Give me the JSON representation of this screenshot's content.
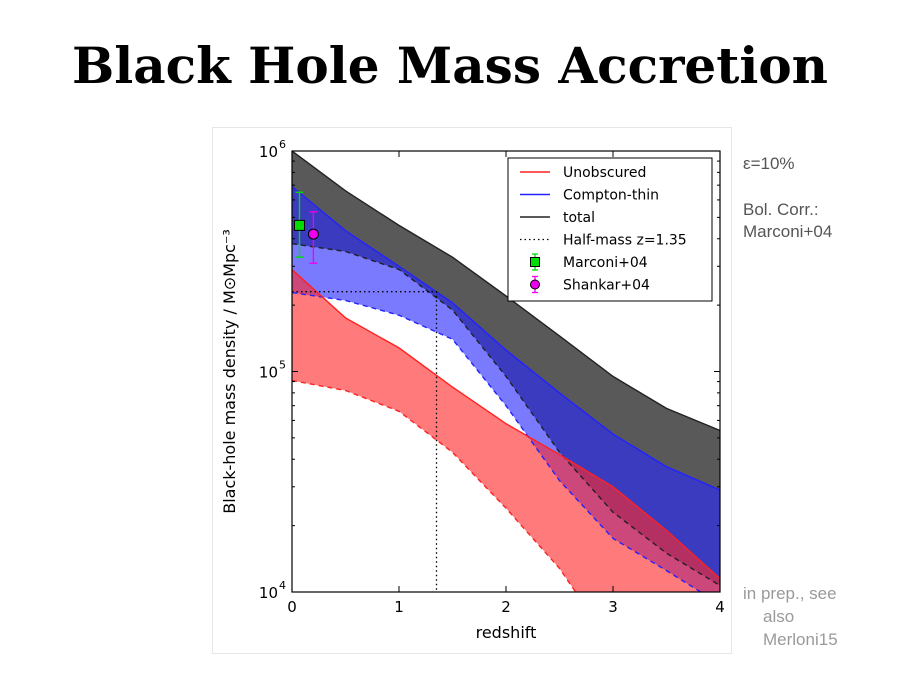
{
  "slide": {
    "title": "Black Hole Mass Accretion",
    "side_notes": [
      "ε=10%",
      "Bol. Corr.:",
      "Marconi+04"
    ],
    "reference_lines": [
      "in prep., see",
      "also",
      "Merloni15"
    ]
  },
  "chart_data": {
    "type": "area",
    "xlabel": "redshift",
    "ylabel": "Black-hole mass density / M⊙Mpc⁻³",
    "xlim": [
      0,
      4
    ],
    "ylim": [
      10000,
      1000000
    ],
    "yscale": "log",
    "xticks": [
      0,
      1,
      2,
      3,
      4
    ],
    "yticks": [
      {
        "value": 10000,
        "base": "10",
        "exp": "4"
      },
      {
        "value": 100000,
        "base": "10",
        "exp": "5"
      },
      {
        "value": 1000000,
        "base": "10",
        "exp": "6"
      }
    ],
    "grid": false,
    "legend_position": "top-right",
    "colors": {
      "unobscured": "#ff2222",
      "compton_thin": "#2222ff",
      "total": "#222222",
      "marconi": "#00dd00",
      "shankar": "#ee00ee"
    },
    "series": [
      {
        "name": "Unobscured",
        "kind": "band",
        "upper": [
          [
            0,
            290000
          ],
          [
            0.5,
            175000
          ],
          [
            1,
            128000
          ],
          [
            1.5,
            85000
          ],
          [
            2,
            58000
          ],
          [
            2.5,
            42000
          ],
          [
            3,
            30000
          ],
          [
            3.5,
            19000
          ],
          [
            4,
            11500
          ]
        ],
        "lower": [
          [
            0,
            91000
          ],
          [
            0.5,
            82000
          ],
          [
            1,
            66000
          ],
          [
            1.5,
            43000
          ],
          [
            2,
            24000
          ],
          [
            2.5,
            12800
          ],
          [
            2.65,
            10000
          ]
        ]
      },
      {
        "name": "Compton-thin",
        "kind": "band",
        "upper": [
          [
            0,
            690000
          ],
          [
            0.5,
            435000
          ],
          [
            1,
            300000
          ],
          [
            1.5,
            205000
          ],
          [
            2,
            125000
          ],
          [
            2.5,
            80000
          ],
          [
            3,
            52000
          ],
          [
            3.5,
            37000
          ],
          [
            4,
            29000
          ]
        ],
        "lower": [
          [
            0,
            228000
          ],
          [
            0.5,
            210000
          ],
          [
            1,
            180000
          ],
          [
            1.5,
            140000
          ],
          [
            2,
            70000
          ],
          [
            2.5,
            32000
          ],
          [
            3,
            17500
          ],
          [
            3.5,
            12500
          ],
          [
            3.82,
            10000
          ]
        ]
      },
      {
        "name": "total",
        "kind": "band",
        "upper": [
          [
            0,
            1000000
          ],
          [
            0.5,
            660000
          ],
          [
            1,
            460000
          ],
          [
            1.5,
            330000
          ],
          [
            2,
            220000
          ],
          [
            2.5,
            145000
          ],
          [
            3,
            95000
          ],
          [
            3.5,
            68000
          ],
          [
            4,
            54000
          ]
        ],
        "lower": [
          [
            0,
            380000
          ],
          [
            0.5,
            350000
          ],
          [
            1,
            290000
          ],
          [
            1.5,
            190000
          ],
          [
            2,
            95000
          ],
          [
            2.5,
            43000
          ],
          [
            3,
            23000
          ],
          [
            3.5,
            15000
          ],
          [
            4,
            10700
          ]
        ]
      },
      {
        "name": "Half-mass z=1.35",
        "kind": "dotted",
        "points": [
          [
            0,
            230000
          ],
          [
            1.35,
            230000
          ],
          [
            1.35,
            10000
          ]
        ]
      },
      {
        "name": "Marconi+04",
        "kind": "point",
        "marker": "square",
        "points": [
          {
            "x": 0.07,
            "y": 460000,
            "ylow": 330000,
            "yhigh": 650000
          }
        ]
      },
      {
        "name": "Shankar+04",
        "kind": "point",
        "marker": "circle",
        "points": [
          {
            "x": 0.2,
            "y": 420000,
            "ylow": 310000,
            "yhigh": 530000
          }
        ]
      }
    ]
  }
}
